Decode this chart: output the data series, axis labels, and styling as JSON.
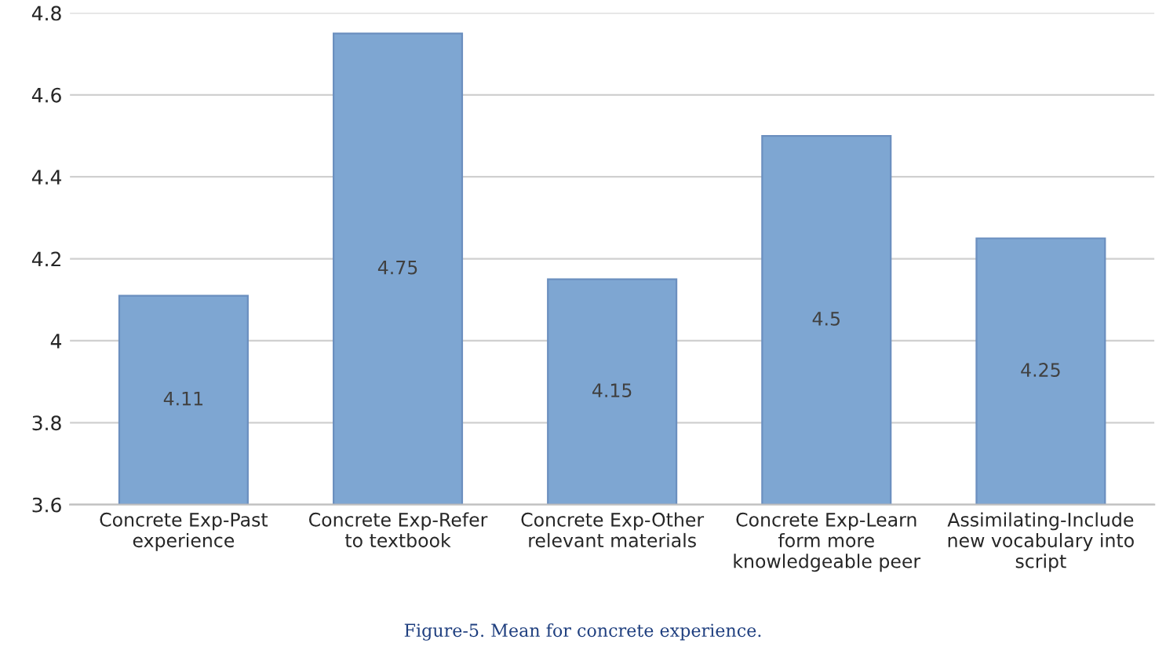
{
  "chart_data": {
    "type": "bar",
    "categories": [
      "Concrete Exp-Past\nexperience",
      "Concrete Exp-Refer\nto textbook",
      "Concrete Exp-Other\nrelevant materials",
      "Concrete Exp-Learn\nform more\nknowledgeable peer",
      "Assimilating-Include\nnew vocabulary into\nscript"
    ],
    "values": [
      4.11,
      4.75,
      4.15,
      4.5,
      4.25
    ],
    "color": "#7ea6d2",
    "data_labels": true,
    "ylim": [
      3.6,
      4.8
    ],
    "yticks": [
      3.6,
      3.8,
      4,
      4.2,
      4.4,
      4.6,
      4.8
    ],
    "grid": "y",
    "annotations": [
      "Figure-5. Mean for concrete experience."
    ]
  }
}
